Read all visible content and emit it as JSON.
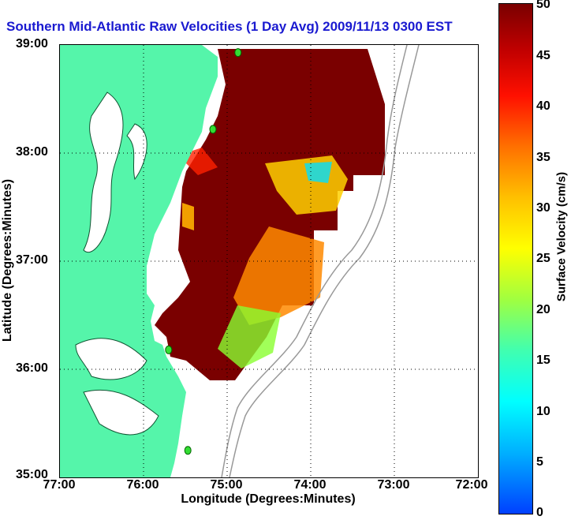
{
  "title": "Southern Mid-Atlantic Raw Velocities (1 Day Avg) 2009/11/13 0300 EST",
  "x_axis": {
    "label": "Longitude (Degrees:Minutes)",
    "ticks": [
      "77:00",
      "76:00",
      "75:00",
      "74:00",
      "73:00",
      "72:00"
    ]
  },
  "y_axis": {
    "label": "Latitude (Degrees:Minutes)",
    "ticks": [
      "39:00",
      "38:00",
      "37:00",
      "36:00",
      "35:00"
    ]
  },
  "colorbar": {
    "label": "Surface Velocity (cm/s)",
    "ticks": [
      "50",
      "45",
      "40",
      "35",
      "30",
      "25",
      "20",
      "15",
      "10",
      "5",
      "0"
    ],
    "min": 0,
    "max": 50
  },
  "map": {
    "lon_range": [
      -77,
      -72
    ],
    "lat_range": [
      35,
      39
    ],
    "land_color": "#55f5aa",
    "grid": "dotted",
    "station_color": "#33dd33",
    "stations": [
      {
        "lon": -74.87,
        "lat": 38.93
      },
      {
        "lon": -75.17,
        "lat": 38.22
      },
      {
        "lon": -75.7,
        "lat": 36.18
      },
      {
        "lon": -75.47,
        "lat": 35.25
      }
    ]
  },
  "scale": [
    "#0040ff",
    "#00ffff",
    "#ffff00",
    "#ff7000",
    "#ff1000",
    "#7a0000"
  ]
}
